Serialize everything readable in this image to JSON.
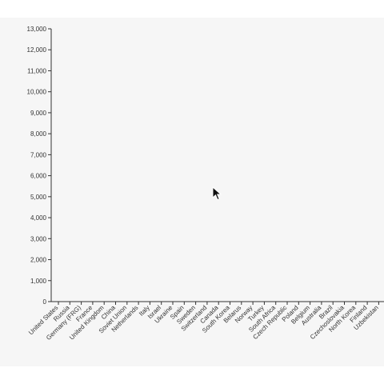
{
  "chart_data": {
    "type": "bar",
    "title": "",
    "xlabel": "",
    "ylabel": "",
    "ylim": [
      0,
      13000
    ],
    "yticks": [
      0,
      1000,
      2000,
      3000,
      4000,
      5000,
      6000,
      7000,
      8000,
      9000,
      10000,
      11000,
      12000,
      13000
    ],
    "ytick_labels": [
      "0",
      "1,000",
      "2,000",
      "3,000",
      "4,000",
      "5,000",
      "6,000",
      "7,000",
      "8,000",
      "9,000",
      "10,000",
      "11,000",
      "12,000",
      "13,000"
    ],
    "grid": false,
    "categories": [
      "United States",
      "Russia",
      "Germany (FRG)",
      "France",
      "United Kingdom",
      "China",
      "Soviet Union",
      "Netherlands",
      "Italy",
      "Israel",
      "Ukraine",
      "Spain",
      "Sweden",
      "Switzerland",
      "Canada",
      "South Korea",
      "Belarus",
      "Norway",
      "Turkey",
      "South Africa",
      "Czech Republic",
      "Poland",
      "Belgium",
      "Australia",
      "Brazil",
      "Czechoslovakia",
      "North Korea",
      "Finland",
      "Uzbekistan"
    ],
    "values": [
      0,
      0,
      0,
      0,
      0,
      0,
      0,
      0,
      0,
      0,
      0,
      0,
      0,
      0,
      0,
      0,
      0,
      0,
      0,
      0,
      0,
      0,
      0,
      0,
      0,
      0,
      0,
      0,
      0
    ]
  },
  "colors": {
    "axis": "#333333",
    "background": "#f6f6f6",
    "bar": "#4682b4"
  },
  "cursor_icon": "mouse-pointer-icon"
}
